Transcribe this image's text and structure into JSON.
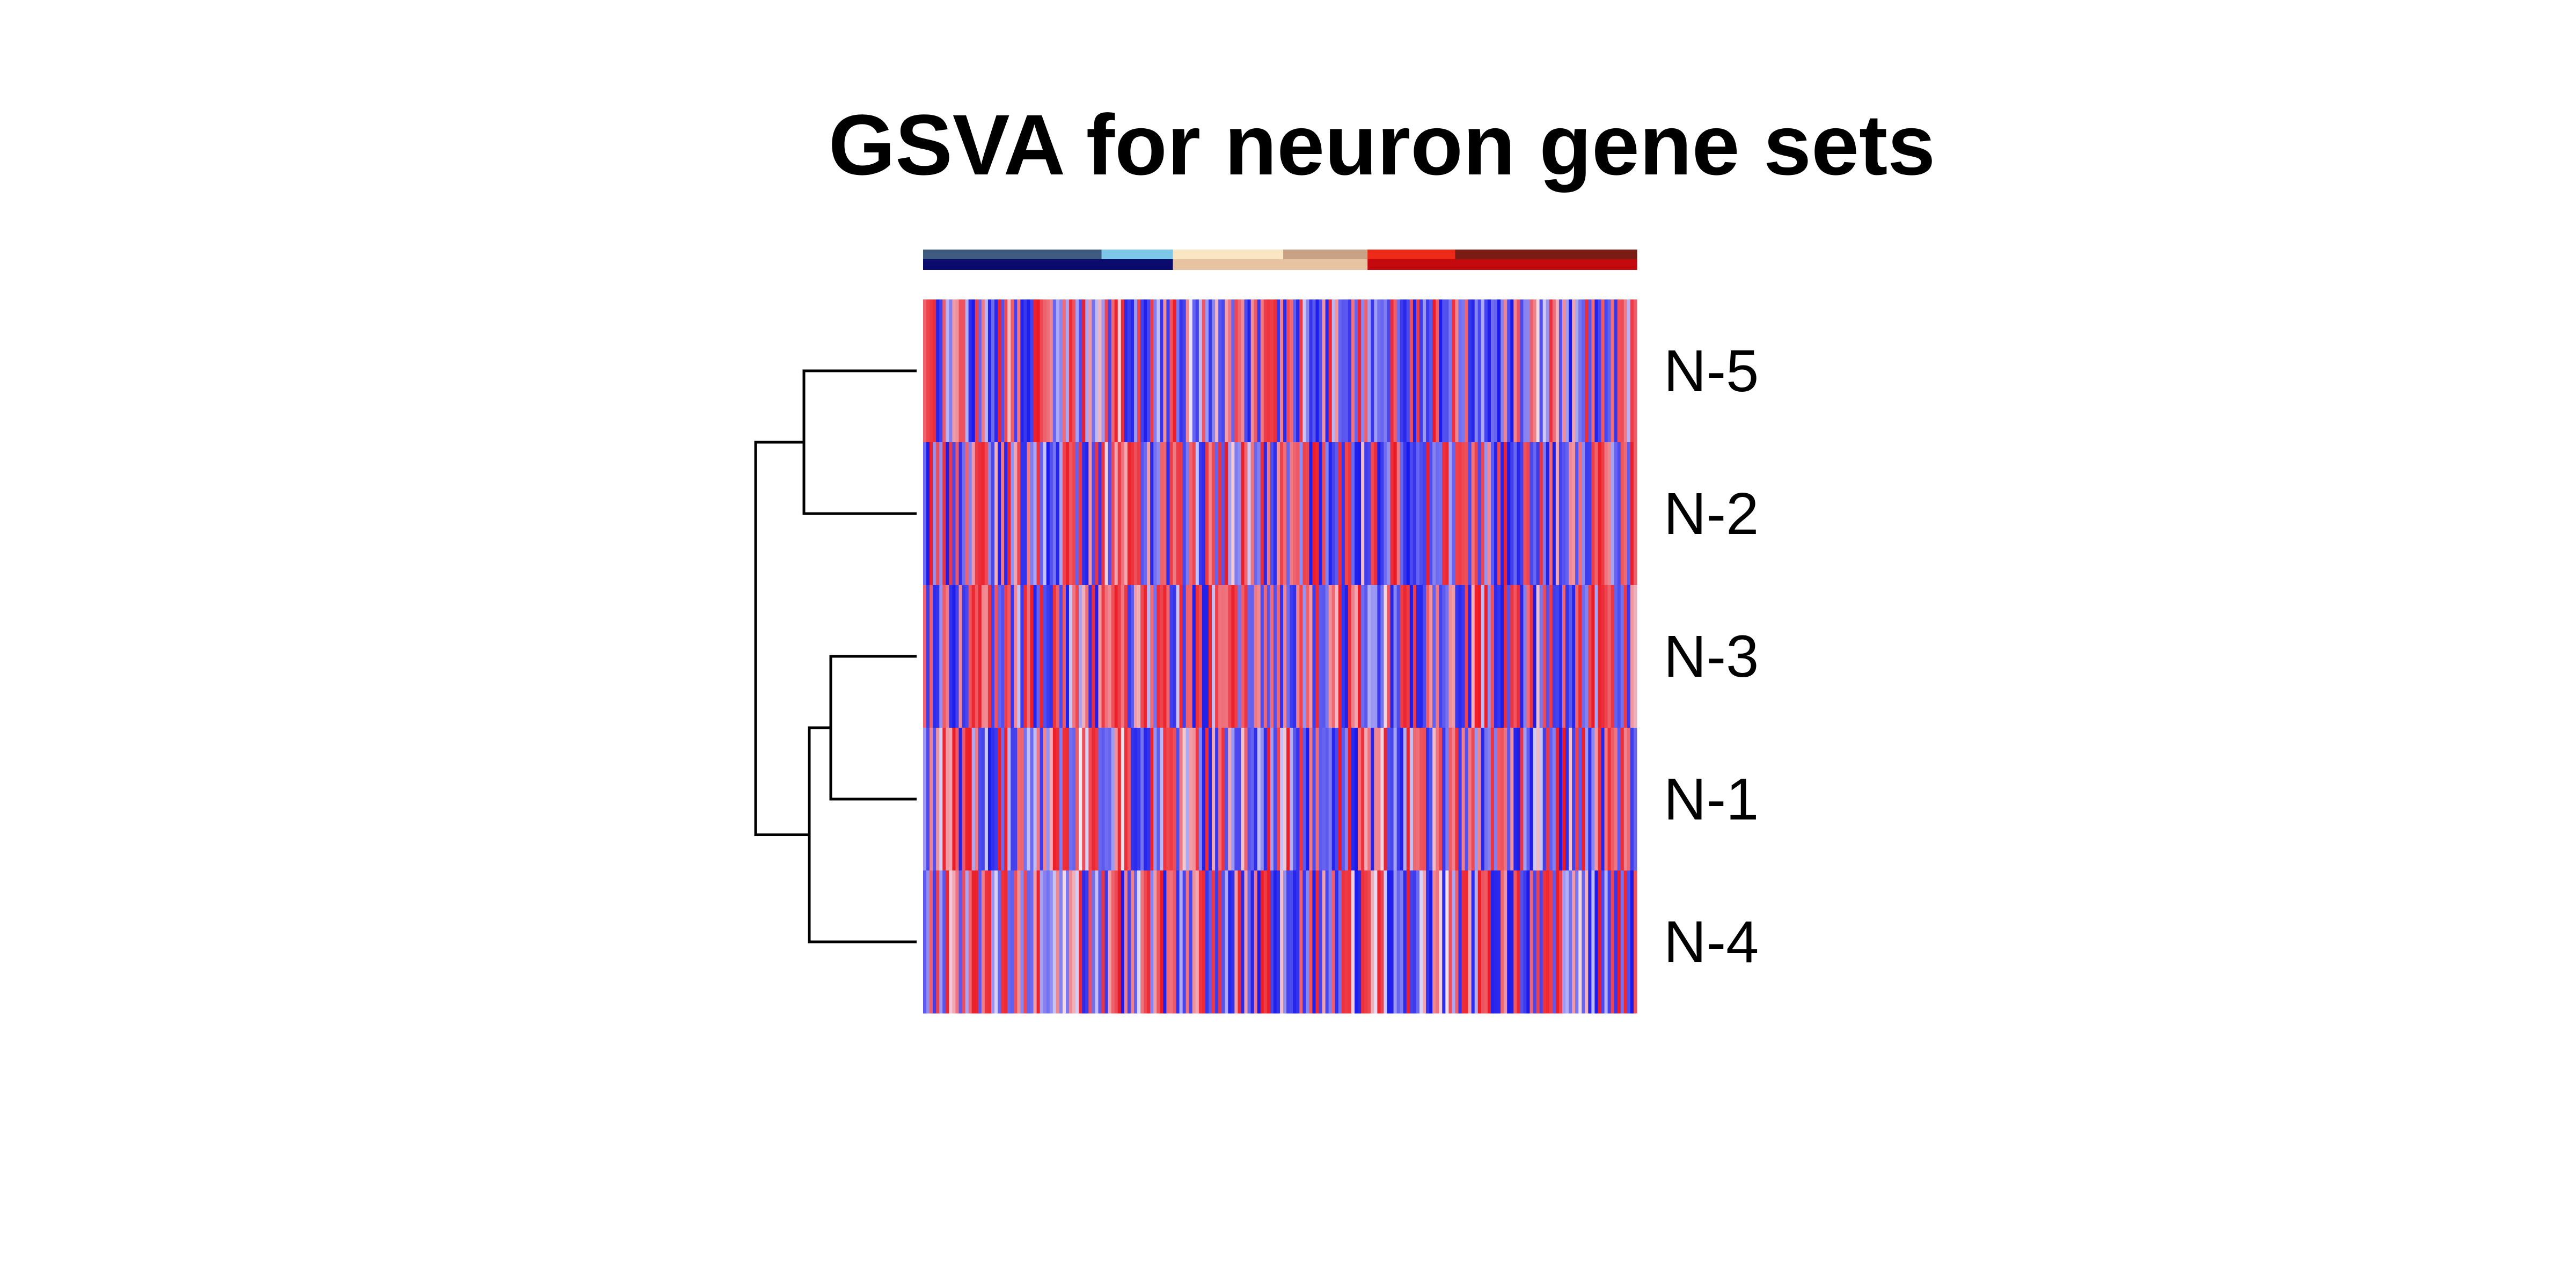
{
  "chart_data": {
    "type": "heatmap",
    "title": "GSVA for neuron gene sets",
    "rows": [
      "N-5",
      "N-2",
      "N-3",
      "N-1",
      "N-4"
    ],
    "n_columns": 220,
    "color_scale": {
      "low": "#1a1aeb",
      "mid": "#f2ecf7",
      "high": "#ec1a24"
    },
    "column_annotation_tracks": [
      {
        "segments": [
          {
            "color": "#3f5b80",
            "count": 55
          },
          {
            "color": "#7dc8e8",
            "count": 22
          },
          {
            "color": "#fbe6c4",
            "count": 34
          },
          {
            "color": "#c9a285",
            "count": 26
          },
          {
            "color": "#ee2a18",
            "count": 27
          },
          {
            "color": "#7b1c14",
            "count": 56
          }
        ]
      },
      {
        "segments": [
          {
            "color": "#0b0b6e",
            "count": 77
          },
          {
            "color": "#e8c3a2",
            "count": 60
          },
          {
            "color": "#c4090f",
            "count": 83
          }
        ]
      }
    ],
    "row_dendrogram": {
      "leaf_order": [
        "N-5",
        "N-2",
        "N-3",
        "N-1",
        "N-4"
      ],
      "merges": [
        {
          "a": "N-5",
          "b": "N-2",
          "height": 0.21
        },
        {
          "a": "N-3",
          "b": "N-1",
          "height": 0.16
        },
        {
          "a": "N-3+N-1",
          "b": "N-4",
          "height": 0.2
        },
        {
          "a": "N-5+N-2",
          "b": "N-3+N-1+N-4",
          "height": 0.3
        }
      ]
    },
    "legend": "none",
    "grid": false
  }
}
